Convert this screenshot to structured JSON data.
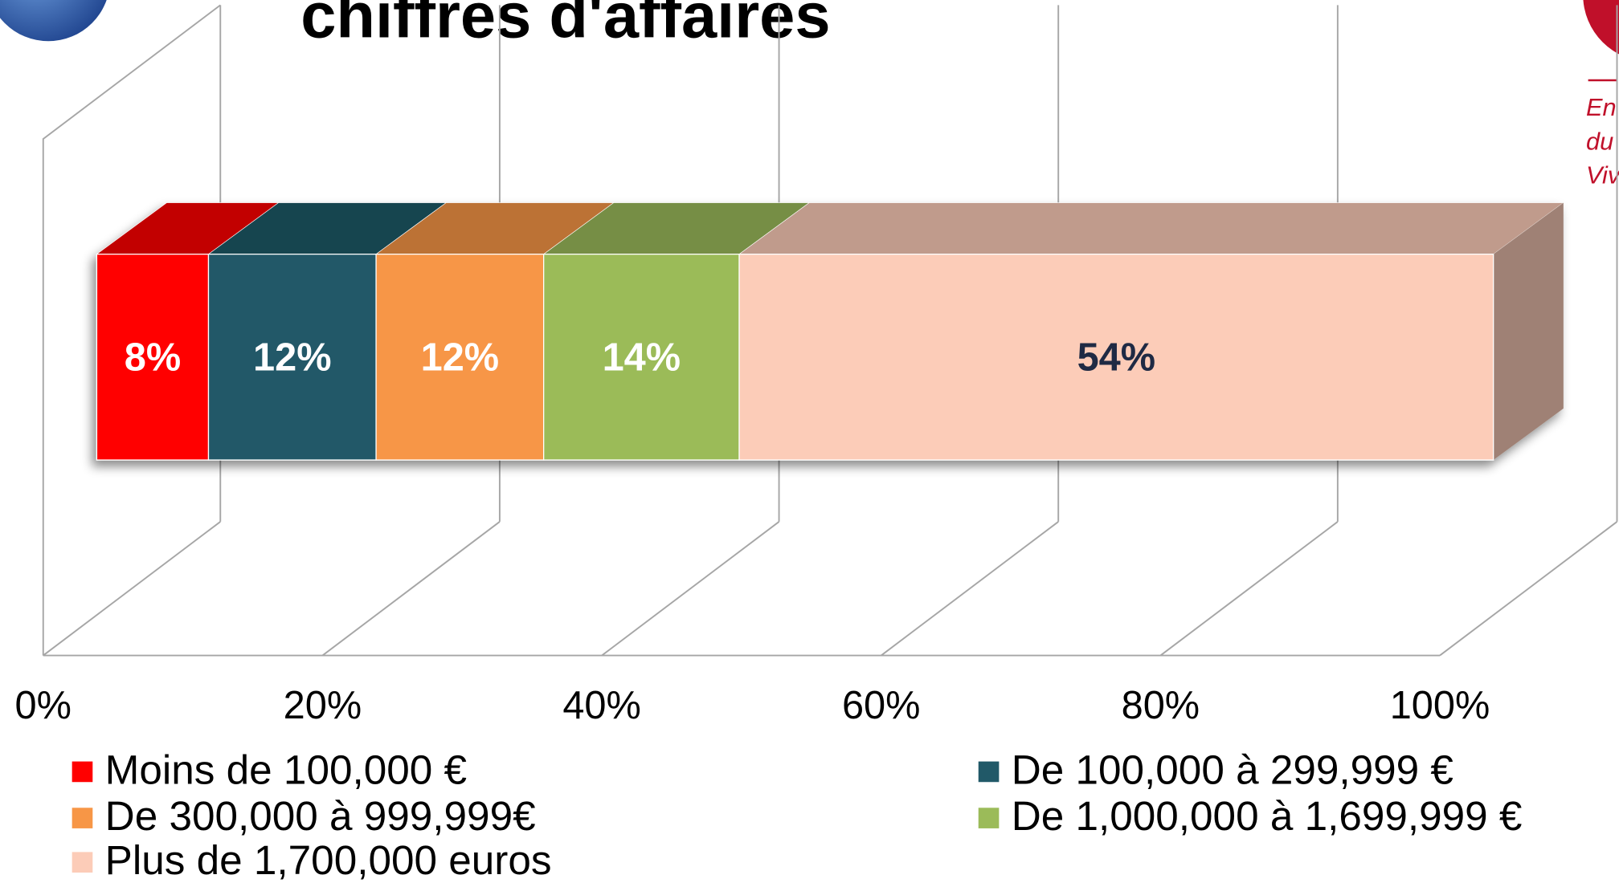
{
  "chart_data": {
    "type": "bar3d_stacked_horizontal",
    "title": "chiffres d'affaires",
    "logo_text": [
      "En",
      "du",
      "Viv"
    ],
    "series": [
      {
        "name": "Moins de 100,000 €",
        "color": "#ff0000",
        "label_color": "#ffffff",
        "values": [
          8
        ],
        "value_labels": [
          "8%"
        ]
      },
      {
        "name": "De 100,000 à 299,999 €",
        "color": "#215968",
        "label_color": "#ffffff",
        "values": [
          12
        ],
        "value_labels": [
          "12%"
        ]
      },
      {
        "name": "De 300,000 à 999,999€",
        "color": "#f79646",
        "label_color": "#ffffff",
        "values": [
          12
        ],
        "value_labels": [
          "12%"
        ]
      },
      {
        "name": "De 1,000,000 à 1,699,999 €",
        "color": "#9bbb59",
        "label_color": "#ffffff",
        "values": [
          14
        ],
        "value_labels": [
          "14%"
        ]
      },
      {
        "name": "Plus de 1,700,000 euros",
        "color": "#fcccb8",
        "label_color": "#1f2a44",
        "values": [
          54
        ],
        "value_labels": [
          "54%"
        ]
      }
    ],
    "xlim": [
      0,
      100
    ],
    "xticks": [
      {
        "value": 0,
        "label": "0%"
      },
      {
        "value": 20,
        "label": "20%"
      },
      {
        "value": 40,
        "label": "40%"
      },
      {
        "value": 60,
        "label": "60%"
      },
      {
        "value": 80,
        "label": "80%"
      },
      {
        "value": 100,
        "label": "100%"
      }
    ],
    "grid": true
  }
}
